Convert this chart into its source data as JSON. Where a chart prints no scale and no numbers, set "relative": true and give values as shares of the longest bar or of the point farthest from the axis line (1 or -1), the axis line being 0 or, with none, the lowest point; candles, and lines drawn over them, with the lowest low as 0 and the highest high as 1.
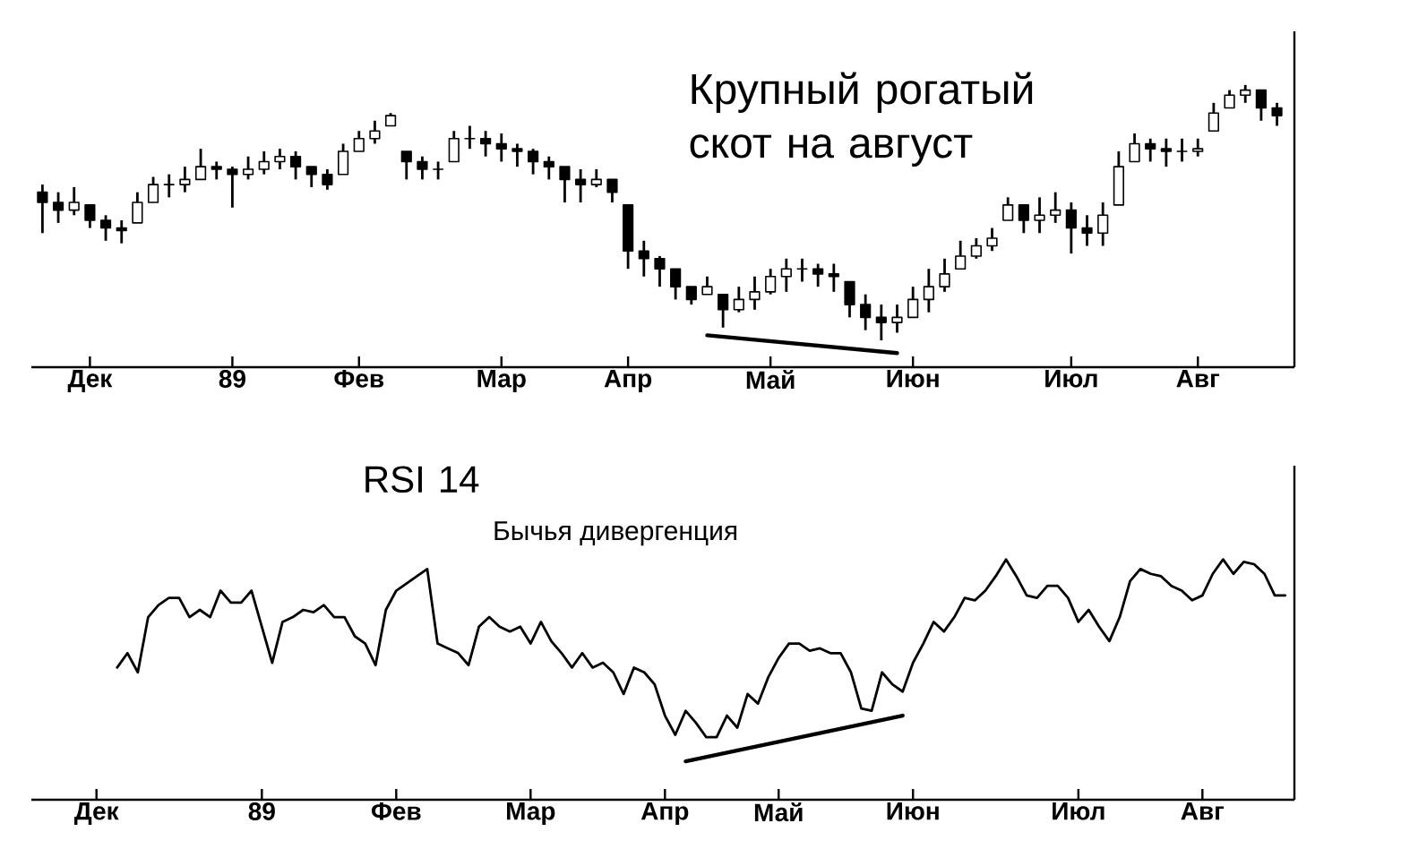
{
  "chart_data": [
    {
      "type": "candlestick",
      "title": "Крупный рогатый скот на август",
      "relative": true,
      "categories": [
        null,
        null,
        null,
        "Дек",
        null,
        null,
        null,
        null,
        null,
        null,
        null,
        null,
        "89",
        null,
        null,
        null,
        null,
        null,
        null,
        null,
        "Фев",
        null,
        null,
        null,
        null,
        null,
        null,
        null,
        null,
        "Мар",
        null,
        null,
        null,
        null,
        null,
        null,
        null,
        "Апр",
        null,
        null,
        null,
        null,
        null,
        null,
        null,
        null,
        "Май",
        null,
        null,
        null,
        null,
        null,
        null,
        null,
        null,
        "Июн",
        null,
        null,
        null,
        null,
        null,
        null,
        null,
        null,
        null,
        "Июл",
        null,
        null,
        null,
        null,
        null,
        null,
        null,
        "Авг",
        null,
        null,
        null,
        null,
        null
      ],
      "ohlc": [
        [
          0.58,
          0.61,
          0.42,
          0.54
        ],
        [
          0.54,
          0.58,
          0.46,
          0.51
        ],
        [
          0.51,
          0.6,
          0.49,
          0.54
        ],
        [
          0.53,
          0.53,
          0.44,
          0.47
        ],
        [
          0.47,
          0.49,
          0.39,
          0.44
        ],
        [
          0.44,
          0.47,
          0.38,
          0.43
        ],
        [
          0.46,
          0.58,
          0.46,
          0.54
        ],
        [
          0.54,
          0.64,
          0.54,
          0.61
        ],
        [
          0.61,
          0.65,
          0.56,
          0.61
        ],
        [
          0.61,
          0.68,
          0.58,
          0.63
        ],
        [
          0.63,
          0.75,
          0.63,
          0.68
        ],
        [
          0.68,
          0.7,
          0.63,
          0.67
        ],
        [
          0.67,
          0.68,
          0.52,
          0.65
        ],
        [
          0.65,
          0.72,
          0.63,
          0.67
        ],
        [
          0.67,
          0.74,
          0.65,
          0.7
        ],
        [
          0.7,
          0.75,
          0.67,
          0.72
        ],
        [
          0.72,
          0.74,
          0.63,
          0.68
        ],
        [
          0.68,
          0.68,
          0.6,
          0.65
        ],
        [
          0.65,
          0.67,
          0.59,
          0.61
        ],
        [
          0.65,
          0.77,
          0.65,
          0.74
        ],
        [
          0.74,
          0.82,
          0.74,
          0.79
        ],
        [
          0.79,
          0.86,
          0.77,
          0.82
        ],
        [
          0.84,
          0.89,
          0.84,
          0.88
        ],
        [
          0.74,
          0.74,
          0.63,
          0.7
        ],
        [
          0.7,
          0.72,
          0.63,
          0.67
        ],
        [
          0.67,
          0.7,
          0.63,
          0.67
        ],
        [
          0.7,
          0.82,
          0.7,
          0.79
        ],
        [
          0.79,
          0.84,
          0.75,
          0.79
        ],
        [
          0.79,
          0.82,
          0.72,
          0.77
        ],
        [
          0.77,
          0.81,
          0.7,
          0.75
        ],
        [
          0.75,
          0.77,
          0.68,
          0.74
        ],
        [
          0.74,
          0.75,
          0.65,
          0.7
        ],
        [
          0.7,
          0.72,
          0.63,
          0.68
        ],
        [
          0.68,
          0.68,
          0.54,
          0.63
        ],
        [
          0.63,
          0.67,
          0.54,
          0.61
        ],
        [
          0.61,
          0.67,
          0.6,
          0.63
        ],
        [
          0.63,
          0.63,
          0.54,
          0.58
        ],
        [
          0.53,
          0.53,
          0.28,
          0.35
        ],
        [
          0.35,
          0.39,
          0.25,
          0.32
        ],
        [
          0.32,
          0.33,
          0.21,
          0.28
        ],
        [
          0.28,
          0.28,
          0.16,
          0.21
        ],
        [
          0.21,
          0.21,
          0.14,
          0.16
        ],
        [
          0.18,
          0.25,
          0.18,
          0.21
        ],
        [
          0.18,
          0.18,
          0.05,
          0.12
        ],
        [
          0.12,
          0.21,
          0.11,
          0.16
        ],
        [
          0.16,
          0.25,
          0.12,
          0.19
        ],
        [
          0.19,
          0.28,
          0.18,
          0.25
        ],
        [
          0.25,
          0.32,
          0.19,
          0.28
        ],
        [
          0.28,
          0.32,
          0.23,
          0.28
        ],
        [
          0.28,
          0.3,
          0.21,
          0.26
        ],
        [
          0.26,
          0.3,
          0.19,
          0.25
        ],
        [
          0.23,
          0.23,
          0.09,
          0.14
        ],
        [
          0.14,
          0.18,
          0.04,
          0.09
        ],
        [
          0.09,
          0.14,
          0.0,
          0.07
        ],
        [
          0.07,
          0.14,
          0.03,
          0.09
        ],
        [
          0.09,
          0.21,
          0.09,
          0.16
        ],
        [
          0.16,
          0.28,
          0.11,
          0.21
        ],
        [
          0.21,
          0.32,
          0.19,
          0.26
        ],
        [
          0.28,
          0.39,
          0.28,
          0.33
        ],
        [
          0.33,
          0.4,
          0.32,
          0.37
        ],
        [
          0.37,
          0.44,
          0.35,
          0.4
        ],
        [
          0.47,
          0.56,
          0.47,
          0.53
        ],
        [
          0.53,
          0.53,
          0.42,
          0.47
        ],
        [
          0.47,
          0.56,
          0.42,
          0.49
        ],
        [
          0.49,
          0.58,
          0.46,
          0.51
        ],
        [
          0.51,
          0.54,
          0.34,
          0.44
        ],
        [
          0.44,
          0.49,
          0.37,
          0.42
        ],
        [
          0.42,
          0.54,
          0.37,
          0.49
        ],
        [
          0.53,
          0.74,
          0.53,
          0.68
        ],
        [
          0.7,
          0.81,
          0.7,
          0.77
        ],
        [
          0.77,
          0.79,
          0.7,
          0.75
        ],
        [
          0.75,
          0.79,
          0.68,
          0.74
        ],
        [
          0.74,
          0.79,
          0.7,
          0.74
        ],
        [
          0.74,
          0.79,
          0.72,
          0.75
        ],
        [
          0.82,
          0.93,
          0.82,
          0.89
        ],
        [
          0.91,
          0.98,
          0.91,
          0.96
        ],
        [
          0.96,
          1.0,
          0.93,
          0.98
        ],
        [
          0.98,
          0.98,
          0.86,
          0.91
        ],
        [
          0.91,
          0.93,
          0.84,
          0.88
        ]
      ],
      "color": "#000000",
      "series": [
        {
          "type": "line",
          "color": "#000000",
          "values": [
            null,
            null,
            null,
            null,
            null,
            null,
            null,
            null,
            null,
            null,
            null,
            null,
            null,
            null,
            null,
            null,
            null,
            null,
            null,
            null,
            null,
            null,
            null,
            null,
            null,
            null,
            null,
            null,
            null,
            null,
            null,
            null,
            null,
            null,
            null,
            null,
            null,
            null,
            null,
            null,
            null,
            null,
            0.02,
            null,
            null,
            null,
            null,
            null,
            null,
            null,
            null,
            null,
            null,
            null,
            -0.05,
            null,
            null,
            null,
            null,
            null,
            null,
            null,
            null,
            null,
            null,
            null,
            null,
            null,
            null,
            null,
            null,
            null,
            null,
            null,
            null,
            null,
            null,
            null,
            null
          ]
        }
      ]
    },
    {
      "type": "line",
      "title": "RSI 14",
      "annotations": [
        "Бычья дивергенция"
      ],
      "relative": true,
      "categories": [
        "Дек",
        null,
        null,
        null,
        null,
        null,
        null,
        null,
        null,
        null,
        null,
        null,
        null,
        null,
        null,
        null,
        "89",
        null,
        null,
        null,
        null,
        null,
        null,
        null,
        null,
        null,
        null,
        null,
        null,
        "Фев",
        null,
        null,
        null,
        null,
        null,
        null,
        null,
        null,
        null,
        null,
        null,
        null,
        "Мар",
        null,
        null,
        null,
        null,
        null,
        null,
        null,
        null,
        null,
        null,
        null,
        null,
        "Апр",
        null,
        null,
        null,
        null,
        null,
        null,
        null,
        null,
        null,
        null,
        "Май",
        null,
        null,
        null,
        null,
        null,
        null,
        null,
        null,
        null,
        null,
        null,
        null,
        "Июн",
        null,
        null,
        null,
        null,
        null,
        null,
        null,
        null,
        null,
        null,
        null,
        null,
        null,
        null,
        null,
        "Июл",
        null,
        null,
        null,
        null,
        null,
        null,
        null,
        null,
        null,
        null,
        null,
        "Авг",
        null,
        null,
        null,
        null,
        null,
        null,
        null,
        null
      ],
      "series": [
        {
          "color": "#000000",
          "values": [
            null,
            null,
            0.55,
            0.61,
            0.53,
            0.76,
            0.81,
            0.84,
            0.84,
            0.76,
            0.79,
            0.76,
            0.87,
            0.82,
            0.82,
            0.87,
            0.72,
            0.57,
            0.74,
            0.76,
            0.79,
            0.78,
            0.81,
            0.76,
            0.76,
            0.68,
            0.65,
            0.56,
            0.79,
            0.87,
            0.9,
            0.93,
            0.96,
            0.65,
            0.63,
            0.61,
            0.56,
            0.72,
            0.76,
            0.72,
            0.7,
            0.72,
            0.65,
            0.74,
            0.66,
            0.61,
            0.55,
            0.61,
            0.55,
            0.57,
            0.53,
            0.44,
            0.55,
            0.53,
            0.48,
            0.35,
            0.27,
            0.37,
            0.32,
            0.26,
            0.26,
            0.35,
            0.3,
            0.44,
            0.4,
            0.51,
            0.59,
            0.65,
            0.65,
            0.62,
            0.63,
            0.61,
            0.61,
            0.53,
            0.38,
            0.37,
            0.53,
            0.48,
            0.45,
            0.57,
            0.65,
            0.74,
            0.7,
            0.76,
            0.84,
            0.83,
            0.87,
            0.93,
            1.0,
            0.93,
            0.85,
            0.84,
            0.89,
            0.89,
            0.84,
            0.74,
            0.79,
            0.72,
            0.66,
            0.76,
            0.91,
            0.96,
            0.94,
            0.93,
            0.89,
            0.87,
            0.83,
            0.85,
            0.94,
            1.0,
            0.94,
            0.99,
            0.98,
            0.94,
            0.85,
            0.85
          ]
        },
        {
          "color": "#000000",
          "values": [
            null,
            null,
            null,
            null,
            null,
            null,
            null,
            null,
            null,
            null,
            null,
            null,
            null,
            null,
            null,
            null,
            null,
            null,
            null,
            null,
            null,
            null,
            null,
            null,
            null,
            null,
            null,
            null,
            null,
            null,
            null,
            null,
            null,
            null,
            null,
            null,
            null,
            null,
            null,
            null,
            null,
            null,
            null,
            null,
            null,
            null,
            null,
            null,
            null,
            null,
            null,
            null,
            null,
            null,
            null,
            null,
            null,
            0.16,
            null,
            null,
            null,
            null,
            null,
            null,
            null,
            null,
            null,
            null,
            null,
            null,
            null,
            null,
            null,
            null,
            null,
            null,
            null,
            null,
            0.35,
            null,
            null,
            null,
            null,
            null,
            null,
            null,
            null,
            null,
            null,
            null,
            null,
            null,
            null,
            null,
            null,
            null,
            null,
            null,
            null,
            null,
            null,
            null,
            null,
            null,
            null,
            null,
            null,
            null,
            null,
            null,
            null,
            null,
            null,
            null,
            null,
            null
          ]
        }
      ]
    }
  ]
}
